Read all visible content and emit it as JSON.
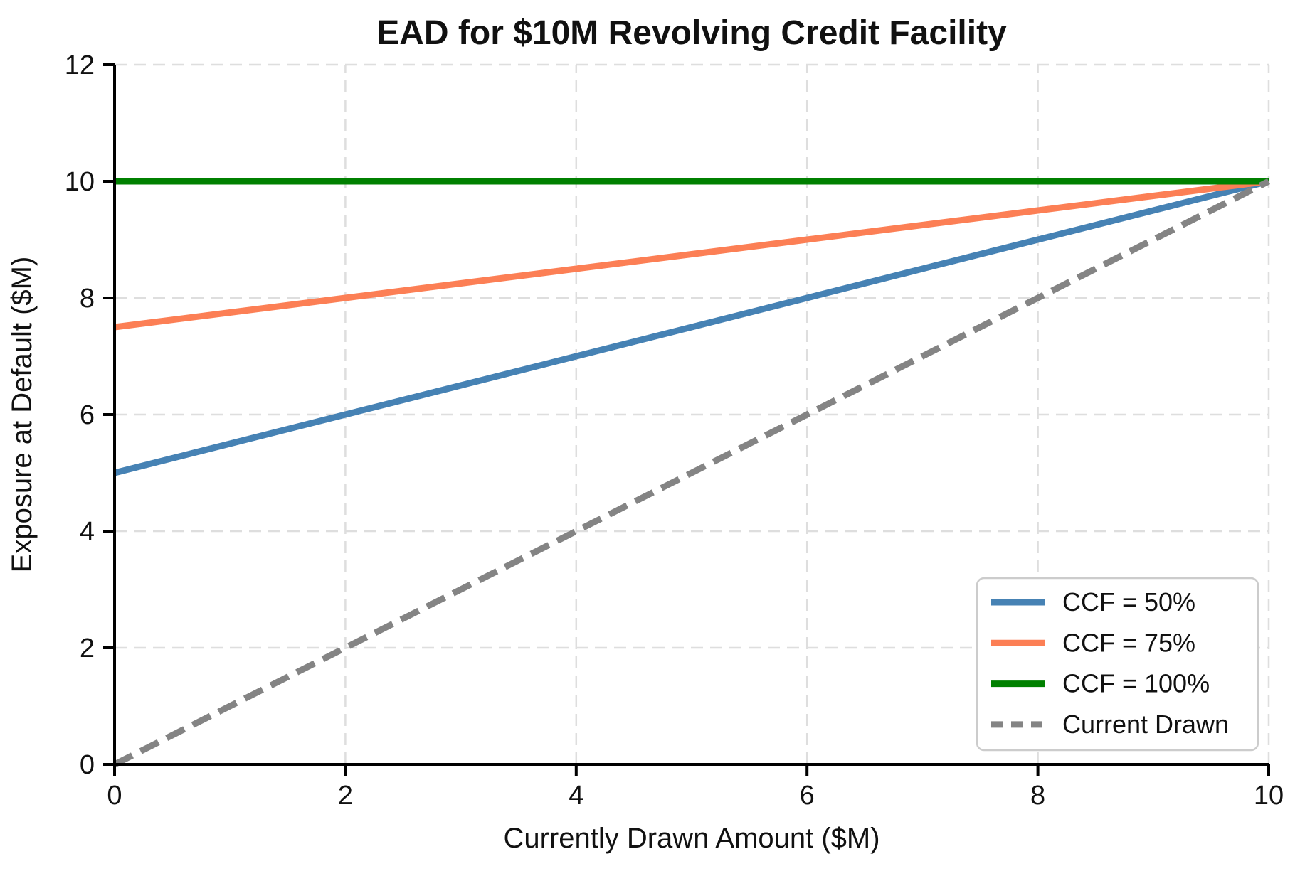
{
  "chart_data": {
    "type": "line",
    "title": "EAD for $10M Revolving Credit Facility",
    "xlabel": "Currently Drawn Amount ($M)",
    "ylabel": "Exposure at Default ($M)",
    "xlim": [
      0,
      10
    ],
    "ylim": [
      0,
      12
    ],
    "xticks": [
      0,
      2,
      4,
      6,
      8,
      10
    ],
    "yticks": [
      0,
      2,
      4,
      6,
      8,
      10,
      12
    ],
    "xtick_labels": [
      "0",
      "2",
      "4",
      "6",
      "8",
      "10"
    ],
    "ytick_labels": [
      "0",
      "2",
      "4",
      "6",
      "8",
      "10",
      "12"
    ],
    "grid": true,
    "grid_style": "dashed",
    "legend_position": "lower right",
    "x": [
      0,
      1,
      2,
      3,
      4,
      5,
      6,
      7,
      8,
      9,
      10
    ],
    "series": [
      {
        "name": "CCF = 50%",
        "color": "#4682B4",
        "linestyle": "solid",
        "values": [
          5,
          5.5,
          6,
          6.5,
          7,
          7.5,
          8,
          8.5,
          9,
          9.5,
          10
        ]
      },
      {
        "name": "CCF = 75%",
        "color": "#FC7F55",
        "linestyle": "solid",
        "values": [
          7.5,
          7.75,
          8,
          8.25,
          8.5,
          8.75,
          9,
          9.25,
          9.5,
          9.75,
          10
        ]
      },
      {
        "name": "CCF = 100%",
        "color": "#008000",
        "linestyle": "solid",
        "values": [
          10,
          10,
          10,
          10,
          10,
          10,
          10,
          10,
          10,
          10,
          10
        ]
      },
      {
        "name": "Current Drawn",
        "color": "#848484",
        "linestyle": "dashed",
        "values": [
          0,
          1,
          2,
          3,
          4,
          5,
          6,
          7,
          8,
          9,
          10
        ]
      }
    ],
    "colors": {
      "background": "#FFFFFF",
      "grid": "#DEDEDE",
      "axis": "#000000",
      "legend_border": "#CCCCCC",
      "legend_background": "#FFFFFF"
    }
  }
}
